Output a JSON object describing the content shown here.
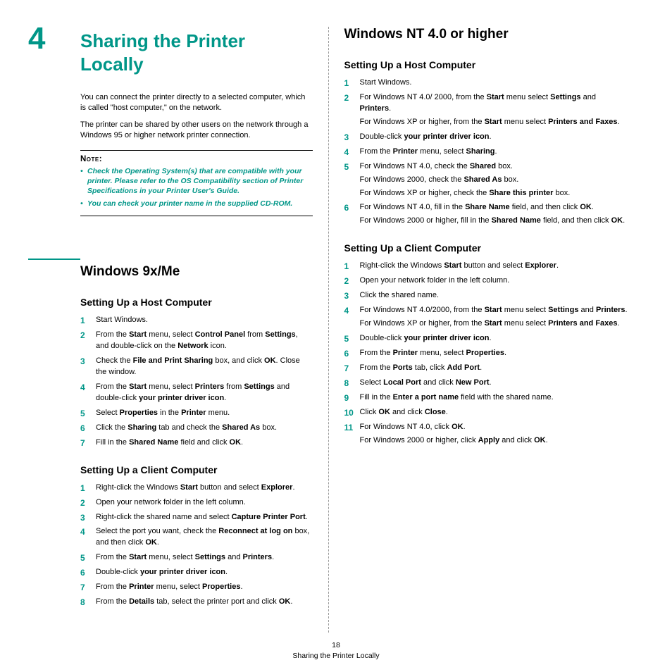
{
  "chapter": {
    "number": "4",
    "title": "Sharing the Printer Locally"
  },
  "intro": {
    "p1": "You can connect the printer directly to a selected computer, which is called \"host computer,\" on the network.",
    "p2": "The printer can be shared by other users on the network through a Windows 95 or higher network printer connection."
  },
  "note": {
    "label": "Note",
    "items": [
      "Check the Operating System(s) that are compatible with your printer. Please refer to the OS Compatibility section of Printer Specifications in your Printer User's Guide.",
      "You can check your printer name in the supplied CD-ROM."
    ]
  },
  "left": {
    "section": "Windows 9x/Me",
    "host": {
      "title": "Setting Up a Host Computer",
      "s1": "Start Windows.",
      "s2a": "From the ",
      "s2b": "Start",
      "s2c": " menu, select ",
      "s2d": "Control Panel",
      "s2e": " from ",
      "s2f": "Settings",
      "s2g": ", and double-click on the ",
      "s2h": "Network",
      "s2i": " icon.",
      "s3a": "Check the ",
      "s3b": "File and Print Sharing",
      "s3c": " box, and click ",
      "s3d": "OK",
      "s3e": ". Close the window.",
      "s4a": "From the ",
      "s4b": "Start",
      "s4c": " menu, select ",
      "s4d": "Printers",
      "s4e": " from ",
      "s4f": "Settings",
      "s4g": " and double-click ",
      "s4h": "your printer driver icon",
      "s4i": ".",
      "s5a": "Select ",
      "s5b": "Properties",
      "s5c": " in the ",
      "s5d": "Printer",
      "s5e": " menu.",
      "s6a": "Click the ",
      "s6b": "Sharing",
      "s6c": " tab and check the ",
      "s6d": "Shared As",
      "s6e": " box.",
      "s7a": "Fill in the ",
      "s7b": "Shared Name",
      "s7c": " field and click ",
      "s7d": "OK",
      "s7e": "."
    },
    "client": {
      "title": "Setting Up a Client Computer",
      "s1a": "Right-click the Windows ",
      "s1b": "Start",
      "s1c": " button and select ",
      "s1d": "Explorer",
      "s1e": ".",
      "s2": "Open your network folder in the left column.",
      "s3a": "Right-click the shared name and select ",
      "s3b": "Capture Printer Port",
      "s3c": ".",
      "s4a": "Select the port you want, check the ",
      "s4b": "Reconnect at log on",
      "s4c": " box, and then click ",
      "s4d": "OK",
      "s4e": ".",
      "s5a": "From the ",
      "s5b": "Start",
      "s5c": " menu, select ",
      "s5d": "Settings",
      "s5e": " and ",
      "s5f": "Printers",
      "s5g": ".",
      "s6a": "Double-click ",
      "s6b": "your printer driver icon",
      "s6c": ".",
      "s7a": "From the ",
      "s7b": "Printer",
      "s7c": " menu, select ",
      "s7d": "Properties",
      "s7e": ".",
      "s8a": "From the ",
      "s8b": "Details",
      "s8c": " tab, select the printer port and click ",
      "s8d": "OK",
      "s8e": "."
    }
  },
  "right": {
    "section": "Windows NT 4.0 or higher",
    "host": {
      "title": "Setting Up a Host Computer",
      "s1": "Start Windows.",
      "s2a": "For Windows NT 4.0/ 2000, from the ",
      "s2b": "Start",
      "s2c": " menu select ",
      "s2d": "Settings",
      "s2e": " and ",
      "s2f": "Printers",
      "s2g": ".",
      "s2h": "For Windows XP or higher, from the ",
      "s2i": "Start",
      "s2j": " menu select ",
      "s2k": "Printers and Faxes",
      "s2l": ".",
      "s3a": "Double-click ",
      "s3b": "your printer driver icon",
      "s3c": ".",
      "s4a": "From the ",
      "s4b": "Printer",
      "s4c": " menu, select ",
      "s4d": "Sharing",
      "s4e": ".",
      "s5a": "For Windows NT 4.0, check the ",
      "s5b": "Shared",
      "s5c": " box.",
      "s5d": "For Windows 2000, check the ",
      "s5e": "Shared As",
      "s5f": " box.",
      "s5g": "For Windows XP or higher, check the ",
      "s5h": "Share this printer",
      "s5i": " box.",
      "s6a": "For Windows NT 4.0, fill in the ",
      "s6b": "Share Name",
      "s6c": " field, and then click ",
      "s6d": "OK",
      "s6e": ".",
      "s6f": "For Windows 2000 or higher, fill in the ",
      "s6g": "Shared Name",
      "s6h": " field, and then click ",
      "s6i": "OK",
      "s6j": "."
    },
    "client": {
      "title": "Setting Up a Client Computer",
      "s1a": "Right-click the Windows ",
      "s1b": "Start",
      "s1c": " button and select ",
      "s1d": "Explorer",
      "s1e": ".",
      "s2": "Open your network folder in the left column.",
      "s3": "Click the shared name.",
      "s4a": "For Windows NT 4.0/2000, from the ",
      "s4b": "Start",
      "s4c": " menu select ",
      "s4d": "Settings",
      "s4e": " and ",
      "s4f": "Printers",
      "s4g": ".",
      "s4h": "For Windows XP or higher, from the ",
      "s4i": "Start",
      "s4j": " menu select ",
      "s4k": "Printers and Faxes",
      "s4l": ".",
      "s5a": "Double-click ",
      "s5b": "your printer driver icon",
      "s5c": ".",
      "s6a": "From the ",
      "s6b": "Printer",
      "s6c": " menu, select ",
      "s6d": "Properties",
      "s6e": ".",
      "s7a": "From the ",
      "s7b": "Ports",
      "s7c": " tab, click ",
      "s7d": "Add Port",
      "s7e": ".",
      "s8a": "Select ",
      "s8b": "Local Port",
      "s8c": " and click ",
      "s8d": "New Port",
      "s8e": ".",
      "s9a": "Fill in the ",
      "s9b": "Enter a port name",
      "s9c": " field with the shared name.",
      "s10a": "Click ",
      "s10b": "OK",
      "s10c": " and click ",
      "s10d": "Close",
      "s10e": ".",
      "s11a": "For Windows NT 4.0, click ",
      "s11b": "OK",
      "s11c": ".",
      "s11d": "For Windows 2000 or higher, click ",
      "s11e": "Apply",
      "s11f": " and click ",
      "s11g": "OK",
      "s11h": "."
    }
  },
  "footer": {
    "page": "18",
    "title": "Sharing the Printer Locally"
  }
}
